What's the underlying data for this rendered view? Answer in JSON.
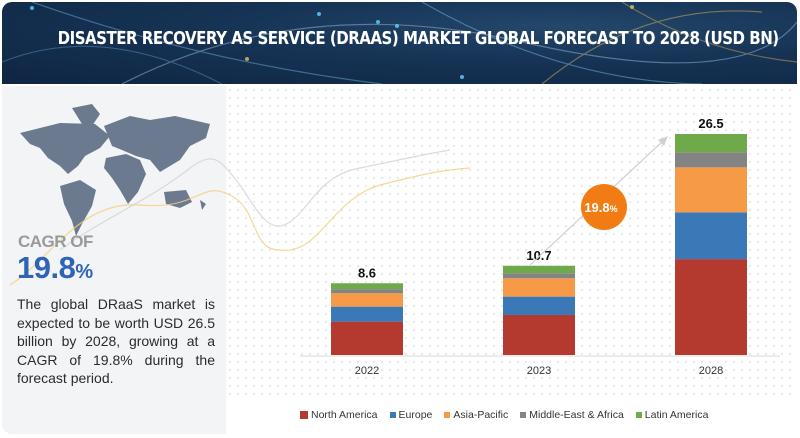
{
  "header": {
    "title": "DISASTER RECOVERY AS SERVICE (DRAAS) MARKET GLOBAL FORECAST TO 2028 (USD BN)"
  },
  "summary": {
    "cagr_label": "CAGR OF",
    "cagr_value": "19.8",
    "cagr_unit": "%",
    "description": "The global DRaaS market is expected to be worth USD 26.5 billion by 2028, growing at a CAGR of 19.8% during the forecast period."
  },
  "colors": {
    "North America": "#b43a30",
    "Europe": "#3a78b8",
    "Asia-Pacific": "#f79a47",
    "Middle-East & Africa": "#848484",
    "Latin America": "#6ea94a",
    "cagr_bubble": "#f27c14",
    "cagr_text": "#2f64b7"
  },
  "chart_data": {
    "type": "bar",
    "stacked": true,
    "title": "DISASTER RECOVERY AS SERVICE (DRAAS) MARKET GLOBAL FORECAST TO 2028 (USD BN)",
    "xlabel": "",
    "ylabel": "",
    "categories": [
      "2022",
      "2023",
      "2028"
    ],
    "totals": [
      "8.6",
      "10.7",
      "26.5"
    ],
    "total_values": [
      8.6,
      10.7,
      26.5
    ],
    "series": [
      {
        "name": "North America",
        "values": [
          4.0,
          4.8,
          11.5
        ]
      },
      {
        "name": "Europe",
        "values": [
          1.8,
          2.2,
          5.6
        ]
      },
      {
        "name": "Asia-Pacific",
        "values": [
          1.6,
          2.2,
          5.4
        ]
      },
      {
        "name": "Middle-East & Africa",
        "values": [
          0.5,
          0.6,
          1.8
        ]
      },
      {
        "name": "Latin America",
        "values": [
          0.7,
          0.9,
          2.2
        ]
      }
    ],
    "ylim": [
      0,
      26.5
    ],
    "grid": false,
    "legend": "bottom",
    "annotation": {
      "label": "19.8",
      "unit": "%",
      "meaning": "CAGR 2023-2028"
    }
  }
}
